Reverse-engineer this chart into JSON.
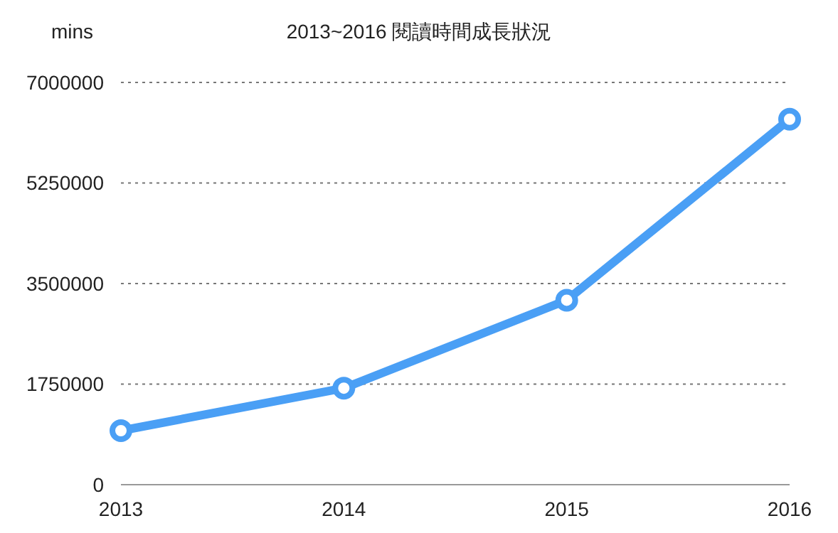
{
  "chart_data": {
    "type": "line",
    "title": "2013~2016 閱讀時間成長狀況",
    "ylabel": "mins",
    "categories": [
      "2013",
      "2014",
      "2015",
      "2016"
    ],
    "series": [
      {
        "color": "#4a9ff5",
        "values": [
          940000,
          1680000,
          3210000,
          6360000
        ]
      }
    ],
    "ylim": [
      0,
      7000000
    ],
    "yticks": [
      0,
      1750000,
      3500000,
      5250000,
      7000000
    ],
    "grid": "y",
    "marker": "circle",
    "line_style": "solid"
  }
}
